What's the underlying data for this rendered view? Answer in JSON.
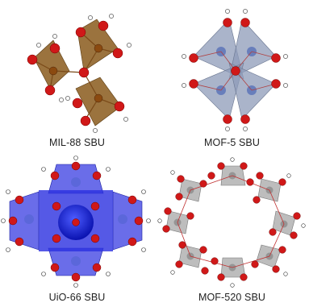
{
  "figure": {
    "panels": [
      {
        "id": "mil88",
        "caption": "MIL-88 SBU",
        "face_color": "#8a5a1c",
        "metal_color": "#8b4a10"
      },
      {
        "id": "mof5",
        "caption": "MOF-5 SBU",
        "face_color": "#8e9bb8",
        "metal_color": "#5d74b8"
      },
      {
        "id": "uio66",
        "caption": "UiO-66 SBU",
        "face_color": "#2b2fe0",
        "metal_color": "#1f35c8"
      },
      {
        "id": "mof520",
        "caption": "MOF-520 SBU",
        "face_color": "#a7a7a7",
        "metal_color": "#7e7e7e"
      }
    ],
    "atom_colors": {
      "oxygen": "#d01818",
      "hydrogen": "#ffffff"
    }
  }
}
